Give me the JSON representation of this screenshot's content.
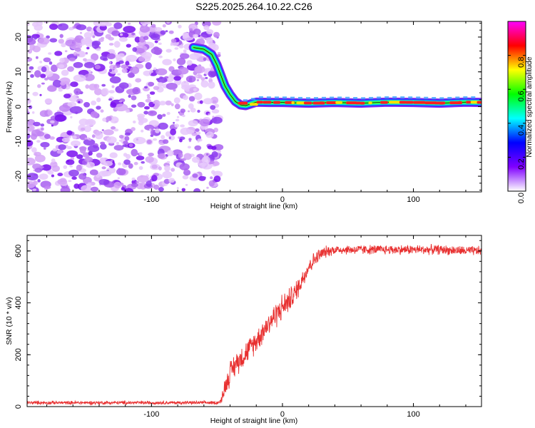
{
  "figure": {
    "title": "S225.2025.264.10.22.C26"
  },
  "chart_data": [
    {
      "id": "spectrogram",
      "type": "heatmap",
      "title": "S225.2025.264.10.22.C26",
      "xlabel": "Height of straight line (km)",
      "ylabel": "Frequency (Hz)",
      "xlim": [
        -195,
        152
      ],
      "ylim": [
        -24.5,
        24.5
      ],
      "x_ticks": [
        -100,
        0,
        100
      ],
      "x_tick_labels": [
        "-100",
        "0",
        "100"
      ],
      "y_ticks": [
        -20,
        -10,
        0,
        10,
        20
      ],
      "y_tick_labels": [
        "-20",
        "-10",
        "0",
        "10",
        "20"
      ],
      "noise_region_x": [
        -195,
        -48
      ],
      "signal_track": {
        "x": [
          -68,
          -60,
          -54,
          -50,
          -47,
          -44,
          -40,
          -36,
          -32,
          -28,
          -24,
          -20,
          -10,
          0,
          20,
          40,
          60,
          80,
          100,
          120,
          140,
          152
        ],
        "y": [
          17,
          16.5,
          15,
          12,
          9,
          6,
          3.5,
          1.5,
          0.5,
          0.3,
          0.8,
          1.3,
          1.2,
          1.2,
          1.0,
          1.2,
          1.0,
          1.3,
          1.2,
          1.0,
          1.3,
          1.2
        ]
      },
      "colorbar": {
        "label": "Normalized spectral amplitude",
        "range": [
          0,
          1
        ],
        "ticks": [
          0.0,
          0.2,
          0.4,
          0.6,
          0.8
        ],
        "tick_labels": [
          "0.0",
          "0.2",
          "0.4",
          "0.6",
          "0.8"
        ],
        "colors": [
          "#ff00ff",
          "#ff0000",
          "#ffff00",
          "#00ff00",
          "#00ffff",
          "#0000ff",
          "#8000ff",
          "#ffffff"
        ]
      }
    },
    {
      "id": "snr",
      "type": "line",
      "xlabel": "Height of straight line (km)",
      "ylabel": "SNR (10 * v/v)",
      "xlim": [
        -195,
        152
      ],
      "ylim": [
        0,
        660
      ],
      "x_ticks": [
        -100,
        0,
        100
      ],
      "x_tick_labels": [
        "-100",
        "0",
        "100"
      ],
      "y_ticks": [
        0,
        200,
        400,
        600
      ],
      "y_tick_labels": [
        "0",
        "200",
        "400",
        "600"
      ],
      "series": [
        {
          "name": "SNR",
          "color": "#e83030",
          "x": [
            -195,
            -150,
            -100,
            -60,
            -50,
            -47,
            -45,
            -40,
            -35,
            -30,
            -25,
            -20,
            -15,
            -10,
            -5,
            0,
            5,
            10,
            15,
            20,
            25,
            30,
            35,
            40,
            60,
            80,
            100,
            120,
            140,
            152
          ],
          "y": [
            15,
            15,
            15,
            15,
            15,
            20,
            60,
            130,
            170,
            195,
            225,
            255,
            290,
            325,
            355,
            385,
            410,
            440,
            490,
            540,
            570,
            590,
            600,
            605,
            605,
            605,
            605,
            605,
            600,
            600
          ],
          "noise_amplitude": [
            8,
            8,
            8,
            8,
            8,
            10,
            40,
            55,
            55,
            55,
            50,
            55,
            55,
            55,
            60,
            60,
            55,
            50,
            45,
            40,
            35,
            30,
            25,
            22,
            22,
            22,
            22,
            22,
            22,
            22
          ]
        }
      ]
    }
  ]
}
